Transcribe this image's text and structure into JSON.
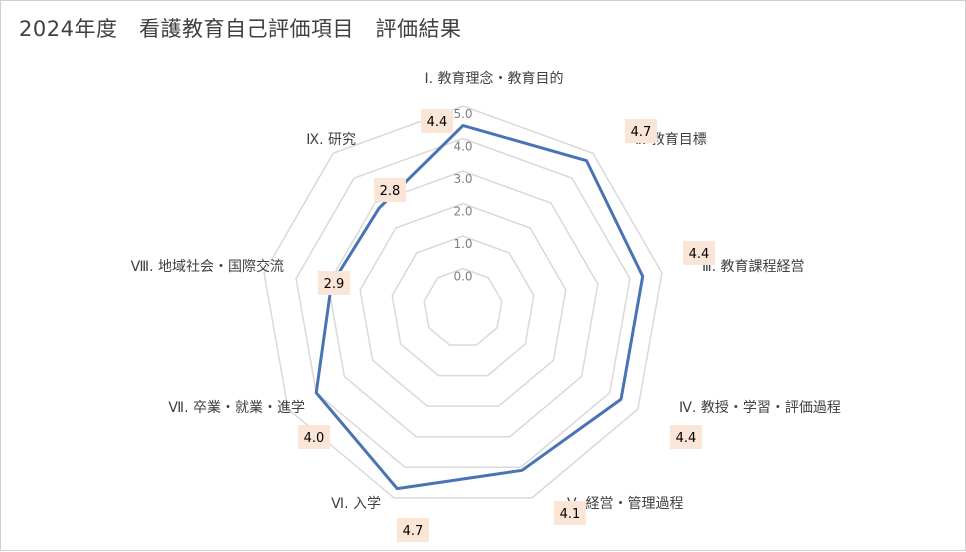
{
  "chart_data": {
    "type": "radar",
    "title": "2024年度　看護教育自己評価項目　評価結果",
    "categories": [
      "Ⅰ. 教育理念・教育目的",
      "Ⅱ. 教育目標",
      "Ⅲ. 教育課程経営",
      "Ⅳ. 教授・学習・評価過程",
      "Ⅴ. 経営・管理過程",
      "Ⅵ. 入学",
      "Ⅶ. 卒業・就業・進学",
      "Ⅷ. 地域社会・国際交流",
      "Ⅸ. 研究"
    ],
    "series": [
      {
        "values": [
          4.4,
          4.7,
          4.4,
          4.4,
          4.1,
          4.7,
          4.0,
          2.9,
          2.8
        ]
      }
    ],
    "value_labels": [
      "4.4",
      "4.7",
      "4.4",
      "4.4",
      "4.1",
      "4.7",
      "4.0",
      "2.9",
      "2.8"
    ],
    "tick_labels": [
      "0.0",
      "1.0",
      "2.0",
      "3.0",
      "4.0",
      "5.0"
    ],
    "rlim": [
      0,
      5
    ],
    "series_color": "#4a73b4",
    "grid_color": "#d9d9d9",
    "label_bg_color": "#fbe5d6",
    "grid": true,
    "legend": "none"
  }
}
